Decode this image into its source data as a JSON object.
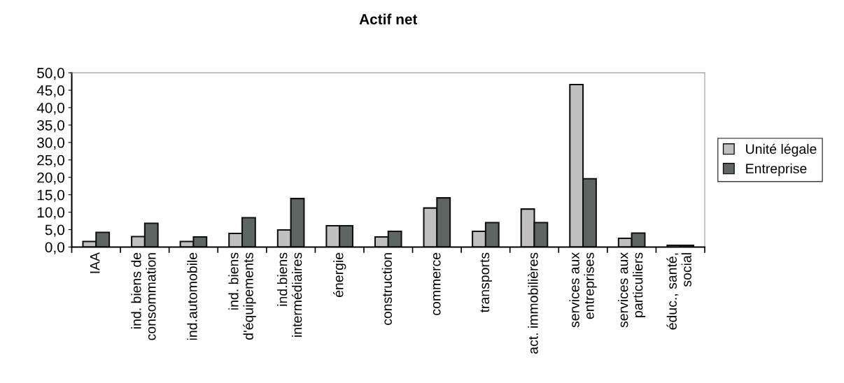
{
  "chart_data": {
    "type": "bar",
    "title": "Actif net",
    "categories": [
      "IAA",
      "ind. biens de\nconsommation",
      "ind.automobile",
      "ind. biens\nd'équipements",
      "ind.biens\nintermédiaires",
      "énergie",
      "construction",
      "commerce",
      "transports",
      "act. immobilières",
      "services aux\nentreprises",
      "services aux\nparticuliers",
      "éduc., santé,\nsocial"
    ],
    "series": [
      {
        "name": "Unité légale",
        "color": "#c0c0c0",
        "values": [
          1.6,
          3.0,
          1.6,
          3.9,
          4.9,
          6.1,
          2.9,
          11.2,
          4.5,
          10.9,
          46.6,
          2.5,
          0.5
        ]
      },
      {
        "name": "Entreprise",
        "color": "#5f6563",
        "values": [
          4.2,
          6.8,
          2.9,
          8.4,
          13.9,
          6.1,
          4.5,
          14.1,
          7.0,
          7.0,
          19.6,
          4.0,
          0.5
        ]
      }
    ],
    "ylim": [
      0,
      50
    ],
    "yticks": [
      {
        "value": 0,
        "label": "0,0"
      },
      {
        "value": 5,
        "label": "5,0"
      },
      {
        "value": 10,
        "label": "10,0"
      },
      {
        "value": 15,
        "label": "15,0"
      },
      {
        "value": 20,
        "label": "20,0"
      },
      {
        "value": 25,
        "label": "25,0"
      },
      {
        "value": 30,
        "label": "30,0"
      },
      {
        "value": 35,
        "label": "35,0"
      },
      {
        "value": 40,
        "label": "40,0"
      },
      {
        "value": 45,
        "label": "45,0"
      },
      {
        "value": 50,
        "label": "50,0"
      }
    ],
    "grid": false,
    "legend": "right"
  }
}
